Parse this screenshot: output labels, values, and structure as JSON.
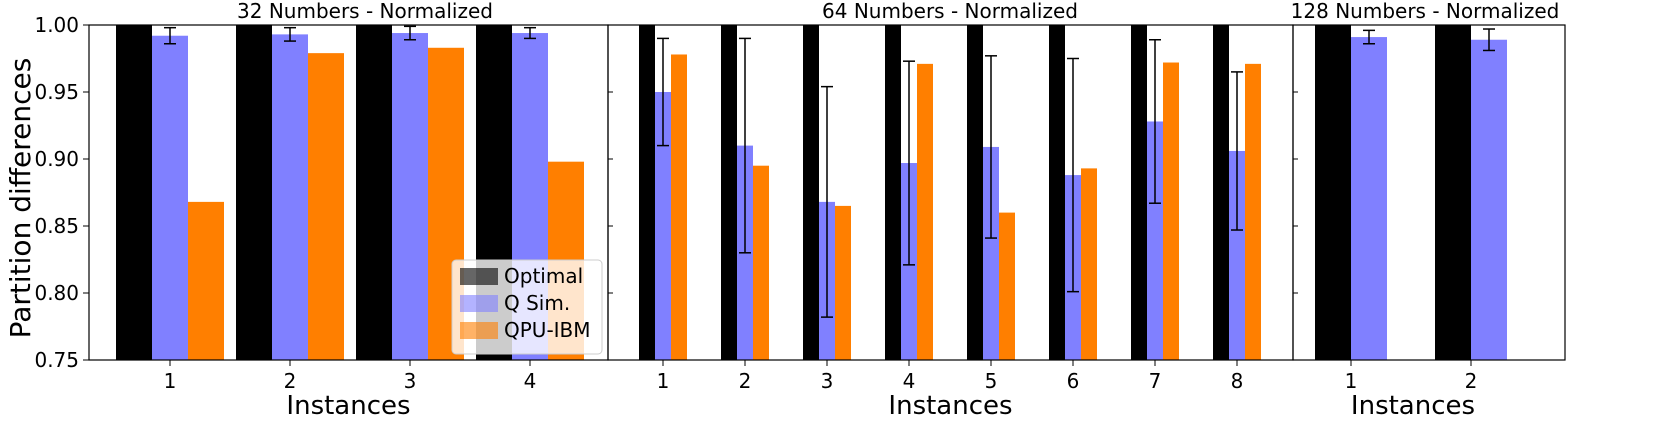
{
  "chart_data": [
    {
      "type": "bar",
      "title": "32 Numbers - Normalized",
      "xlabel": "Instances",
      "ylabel": "Partition differences",
      "ylim": [
        0.75,
        1.0
      ],
      "yticks": [
        "0.75",
        "0.80",
        "0.85",
        "0.90",
        "0.95",
        "1.00"
      ],
      "categories": [
        "1",
        "2",
        "3",
        "4"
      ],
      "series": [
        {
          "name": "Optimal",
          "color": "#000000",
          "values": [
            1.0,
            1.0,
            1.0,
            1.0
          ]
        },
        {
          "name": "Q Sim.",
          "color": "#8080ff",
          "values": [
            0.992,
            0.993,
            0.994,
            0.994
          ],
          "errors": [
            0.006,
            0.005,
            0.005,
            0.004
          ]
        },
        {
          "name": "QPU-IBM",
          "color": "#ff7f00",
          "values": [
            0.868,
            0.979,
            0.983,
            0.898
          ]
        }
      ],
      "legend": {
        "position": "bottom-right",
        "entries": [
          "Optimal",
          "Q Sim.",
          "QPU-IBM"
        ]
      }
    },
    {
      "type": "bar",
      "title": "64 Numbers - Normalized",
      "xlabel": "Instances",
      "ylabel": "",
      "ylim": [
        0.75,
        1.0
      ],
      "categories": [
        "1",
        "2",
        "3",
        "4",
        "5",
        "6",
        "7",
        "8"
      ],
      "series": [
        {
          "name": "Optimal",
          "color": "#000000",
          "values": [
            1.0,
            1.0,
            1.0,
            1.0,
            1.0,
            1.0,
            1.0,
            1.0
          ]
        },
        {
          "name": "Q Sim.",
          "color": "#8080ff",
          "values": [
            0.95,
            0.91,
            0.868,
            0.897,
            0.909,
            0.888,
            0.928,
            0.906
          ],
          "errors": [
            0.04,
            0.08,
            0.086,
            0.076,
            0.068,
            0.087,
            0.061,
            0.059
          ]
        },
        {
          "name": "QPU-IBM",
          "color": "#ff7f00",
          "values": [
            0.978,
            0.895,
            0.865,
            0.971,
            0.86,
            0.893,
            0.972,
            0.971
          ]
        }
      ]
    },
    {
      "type": "bar",
      "title": "128 Numbers - Normalized",
      "xlabel": "Instances",
      "ylabel": "",
      "ylim": [
        0.75,
        1.0
      ],
      "categories": [
        "1",
        "2"
      ],
      "series": [
        {
          "name": "Optimal",
          "color": "#000000",
          "values": [
            1.0,
            1.0
          ]
        },
        {
          "name": "Q Sim.",
          "color": "#8080ff",
          "values": [
            0.991,
            0.989
          ],
          "errors": [
            0.005,
            0.008
          ]
        }
      ]
    }
  ]
}
